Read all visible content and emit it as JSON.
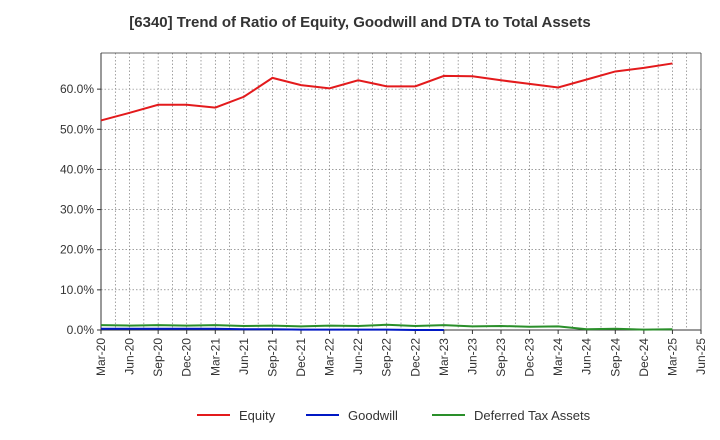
{
  "chart_data": {
    "type": "line",
    "title": "[6340]  Trend of Ratio of Equity, Goodwill and DTA to Total Assets",
    "xlabel": "",
    "ylabel": "",
    "x": [
      "Mar-20",
      "Jun-20",
      "Sep-20",
      "Dec-20",
      "Mar-21",
      "Jun-21",
      "Sep-21",
      "Dec-21",
      "Mar-22",
      "Jun-22",
      "Sep-22",
      "Dec-22",
      "Mar-23",
      "Jun-23",
      "Sep-23",
      "Dec-23",
      "Mar-24",
      "Jun-24",
      "Sep-24",
      "Dec-24",
      "Mar-25",
      "Jun-25"
    ],
    "y_ticks": [
      "0.0%",
      "10.0%",
      "20.0%",
      "30.0%",
      "40.0%",
      "50.0%",
      "60.0%"
    ],
    "y_tick_values": [
      0,
      10,
      20,
      30,
      40,
      50,
      60
    ],
    "ylim": [
      0,
      69
    ],
    "grid": true,
    "legend_position": "bottom",
    "series": [
      {
        "name": "Equity",
        "color": "#e31a1c",
        "values": [
          52.2,
          54.1,
          56.1,
          56.1,
          55.4,
          58.1,
          62.8,
          61.0,
          60.2,
          62.2,
          60.7,
          60.7,
          63.3,
          63.2,
          62.2,
          61.3,
          60.4,
          62.4,
          64.4,
          65.3,
          66.4,
          null
        ]
      },
      {
        "name": "Goodwill",
        "color": "#0018c4",
        "values": [
          0.3,
          0.3,
          0.3,
          0.3,
          0.3,
          0.2,
          0.2,
          0.1,
          0.1,
          0.1,
          0.1,
          0.0,
          0.0,
          null,
          null,
          null,
          null,
          null,
          null,
          null,
          null,
          null
        ]
      },
      {
        "name": "Deferred Tax Assets",
        "color": "#2a8f2a",
        "values": [
          1.2,
          1.1,
          1.2,
          1.1,
          1.2,
          1.0,
          1.1,
          0.9,
          1.1,
          1.0,
          1.3,
          1.0,
          1.2,
          0.9,
          1.0,
          0.8,
          0.9,
          0.2,
          0.3,
          0.1,
          0.2,
          null
        ]
      }
    ]
  }
}
